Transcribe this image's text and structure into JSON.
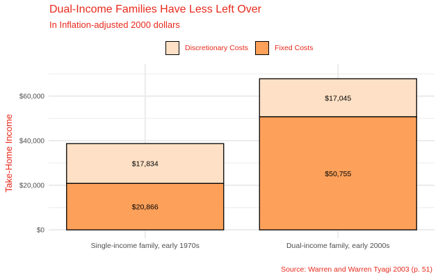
{
  "colors": {
    "title": "#e8291c",
    "fixed": "#fca05a",
    "discretionary": "#fde0c5",
    "outline": "#000000",
    "grid": "#ebebeb",
    "axis_text": "#4d4d4d"
  },
  "chart_data": {
    "type": "bar",
    "stacked": true,
    "title": "Dual-Income Families Have Less Left Over",
    "subtitle": "In Inflation-adjusted 2000 dollars",
    "caption": "Source: Warren and Warren Tyagi 2003 (p. 51)",
    "xlabel": "",
    "ylabel": "Take-Home Income",
    "categories": [
      "Single-income family, early 1970s",
      "Dual-income family, early 2000s"
    ],
    "series": [
      {
        "name": "Fixed Costs",
        "values": [
          20866,
          50755
        ],
        "labels": [
          "$20,866",
          "$50,755"
        ]
      },
      {
        "name": "Discretionary Costs",
        "values": [
          17834,
          17045
        ],
        "labels": [
          "$17,834",
          "$17,045"
        ]
      }
    ],
    "legend": {
      "position": "top",
      "order": [
        "Discretionary Costs",
        "Fixed Costs"
      ]
    },
    "y_ticks": [
      0,
      20000,
      40000,
      60000
    ],
    "y_tick_labels": [
      "$0",
      "$20,000",
      "$40,000",
      "$60,000"
    ],
    "ylim": [
      0,
      71000
    ],
    "grid": true
  }
}
